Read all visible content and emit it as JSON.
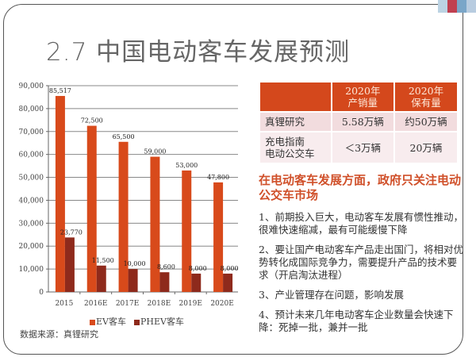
{
  "slide": {
    "title": "2.7 中国电动客车发展预测",
    "source": "数据来源：真锂研究",
    "decoration_colors": [
      "#bcd3e3",
      "#c04050",
      "#7aa6c8",
      "#b8cce0"
    ]
  },
  "colors": {
    "ev": "#d84a1b",
    "phev": "#8e2a1c",
    "table_header": "#d4481c",
    "headline": "#d0502a"
  },
  "chart_data": {
    "type": "bar",
    "title": "",
    "xlabel": "",
    "ylabel": "",
    "categories": [
      "2015",
      "2016E",
      "2017E",
      "2018E",
      "2019E",
      "2020E"
    ],
    "series": [
      {
        "name": "EV客车",
        "values": [
          85517,
          72500,
          65500,
          59000,
          53000,
          47800
        ],
        "labels": [
          "85,517",
          "72,500",
          "65,500",
          "59,000",
          "53,000",
          "47,800"
        ]
      },
      {
        "name": "PHEV客车",
        "values": [
          23770,
          11500,
          10000,
          8600,
          8000,
          8000
        ],
        "labels": [
          "23,770",
          "11,500",
          "10,000",
          "8,600",
          "8,000",
          "8,000"
        ]
      }
    ],
    "ylim": [
      0,
      90000
    ],
    "yticks": [
      0,
      10000,
      20000,
      30000,
      40000,
      50000,
      60000,
      70000,
      80000,
      90000
    ],
    "ytick_labels": [
      "0",
      "10,000",
      "20,000",
      "30,000",
      "40,000",
      "50,000",
      "60,000",
      "70,000",
      "80,000",
      "90,000"
    ],
    "grid": true,
    "legend": "bottom"
  },
  "table": {
    "headers": [
      "",
      "2020年\n产销量",
      "2020年\n保有量"
    ],
    "header_lines": [
      [
        "",
        ""
      ],
      [
        "2020年",
        "产销量"
      ],
      [
        "2020年",
        "保有量"
      ]
    ],
    "rows": [
      {
        "label_lines": [
          "真锂研究"
        ],
        "sales": "5.58万辆",
        "stock": "约50万辆"
      },
      {
        "label_lines": [
          "充电指南",
          "电动公交车"
        ],
        "sales": "＜3万辆",
        "stock": "20万辆"
      }
    ]
  },
  "notes": {
    "headline": "在电动客车发展方面，政府只关注电动公交车市场",
    "items": [
      "1、前期投入巨大，电动客车发展有惯性推动，很难快速缩减，最有可能缓慢下降",
      "2、要让国产电动客车产品走出国门，将相对优势转化成国际竞争力，需要提升产品的技术要求（开启淘汰进程）",
      "3、产业管理存在问题，影响发展",
      "4、预计未来几年电动客车企业数量会快速下降：死掉一批，兼并一批"
    ]
  }
}
